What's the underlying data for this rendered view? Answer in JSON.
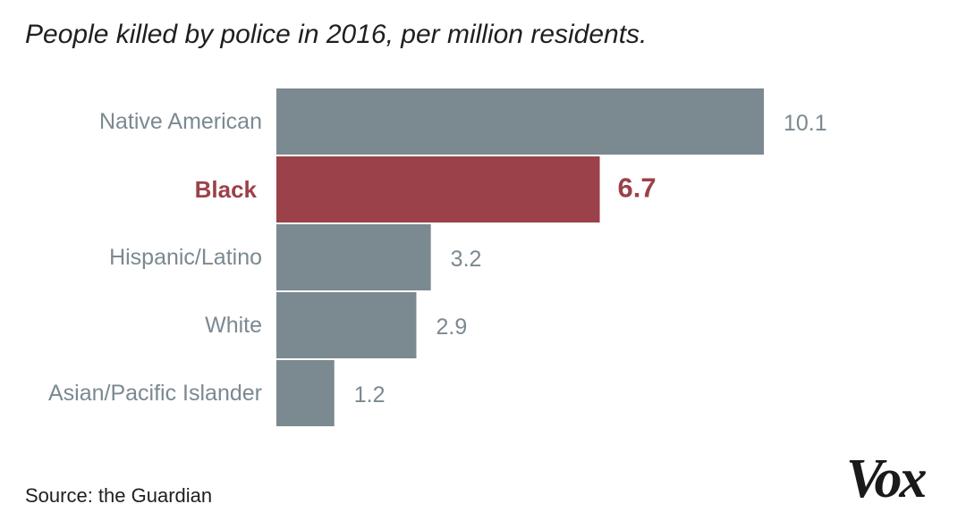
{
  "chart_data": {
    "type": "bar",
    "orientation": "horizontal",
    "title": "People killed by police in 2016, per million residents.",
    "categories": [
      "Native American",
      "Black",
      "Hispanic/Latino",
      "White",
      "Asian/Pacific Islander"
    ],
    "values": [
      10.1,
      6.7,
      3.2,
      2.9,
      1.2
    ],
    "value_labels": [
      "10.1",
      "6.7",
      "3.2",
      "2.9",
      "1.2"
    ],
    "highlight_index": 1,
    "xlim": [
      0,
      10.1
    ],
    "grid": false,
    "colors": {
      "default_bar": "#7b8990",
      "highlight": "#9b4149",
      "default_text": "#7b8990"
    }
  },
  "source": "Source: the Guardian",
  "brand": "Vox"
}
